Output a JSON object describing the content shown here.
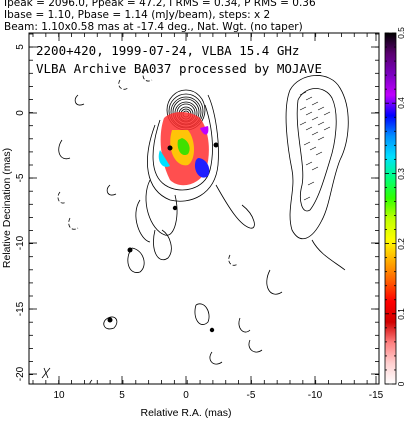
{
  "header": {
    "line1": "Ipeak = 2096.0, Ppeak = 47.2, I RMS = 0.34, P RMS = 0.36",
    "line2": "Ibase = 1.10, Pbase = 1.14 (mJy/beam), steps: x 2",
    "line3": "Beam: 1.10x0.58 mas at -17.4 deg., Nat. Wgt. (no taper)"
  },
  "plot": {
    "title_line1": "2200+420, 1999-07-24, VLBA 15.4 GHz",
    "title_line2": "VLBA Archive BA037 processed by MOJAVE",
    "xlabel": "Relative R.A. (mas)",
    "ylabel": "Relative Decination (mas)",
    "x_ticks": [
      "10",
      "5",
      "0",
      "-5",
      "-10",
      "-15"
    ],
    "y_ticks": [
      "5",
      "0",
      "-5",
      "-10",
      "-15",
      "-20"
    ]
  },
  "colorbar": {
    "ticks": [
      "0.5",
      "0.4",
      "0.3",
      "0.2",
      "0.1",
      "0"
    ],
    "colors": [
      "#000000",
      "#5a0070",
      "#7a00c0",
      "#c000ff",
      "#0000ff",
      "#0090ff",
      "#00e0ff",
      "#00ff80",
      "#30ff00",
      "#c0ff00",
      "#ffff00",
      "#ffb000",
      "#ff6000",
      "#ff0000",
      "#d00000",
      "#ff8080",
      "#ffd0d0",
      "#ffffff"
    ]
  }
}
